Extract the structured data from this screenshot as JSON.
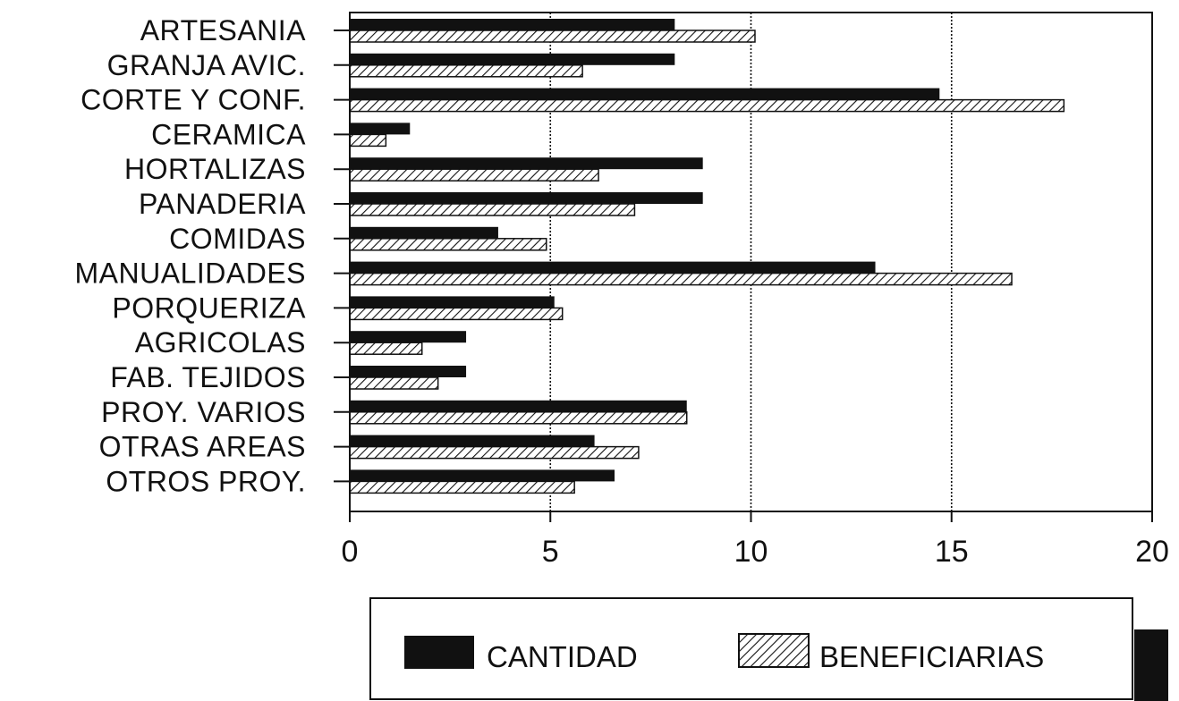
{
  "chart_data": {
    "type": "bar",
    "orientation": "horizontal",
    "categories": [
      "ARTESANIA",
      "GRANJA AVIC.",
      "CORTE Y CONF.",
      "CERAMICA",
      "HORTALIZAS",
      "PANADERIA",
      "COMIDAS",
      "MANUALIDADES",
      "PORQUERIZA",
      "AGRICOLAS",
      "FAB. TEJIDOS",
      "PROY. VARIOS",
      "OTRAS AREAS",
      "OTROS PROY."
    ],
    "series": [
      {
        "name": "CANTIDAD",
        "fill": "solid",
        "values": [
          8.1,
          8.1,
          14.7,
          1.5,
          8.8,
          8.8,
          3.7,
          13.1,
          5.1,
          2.9,
          2.9,
          8.4,
          6.1,
          6.6
        ]
      },
      {
        "name": "BENEFICIARIAS",
        "fill": "hatched",
        "values": [
          10.1,
          5.8,
          17.8,
          0.9,
          6.2,
          7.1,
          4.9,
          16.5,
          5.3,
          1.8,
          2.2,
          8.4,
          7.2,
          5.6
        ]
      }
    ],
    "xlim": [
      0,
      20
    ],
    "xticks": [
      "0",
      "5",
      "10",
      "15",
      "20"
    ],
    "grid": "vertical-dotted",
    "legend_position": "bottom"
  },
  "colors": {
    "ink": "#111111",
    "background": "#ffffff"
  }
}
